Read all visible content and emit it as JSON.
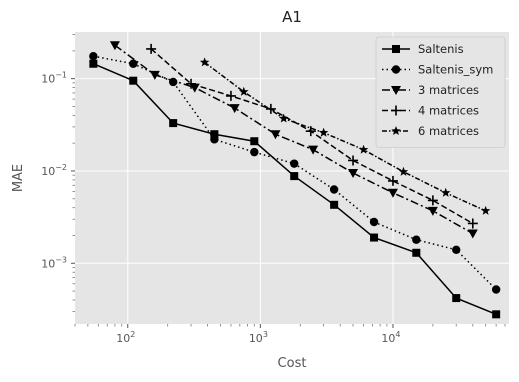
{
  "chart_data": {
    "type": "line",
    "title": "A1",
    "xlabel": "Cost",
    "ylabel": "MAE",
    "xscale": "log",
    "yscale": "log",
    "xlim": [
      40,
      75000
    ],
    "ylim": [
      0.00022,
      0.32
    ],
    "x_ticks": [
      {
        "value": 100,
        "base": "10",
        "exp": "2"
      },
      {
        "value": 1000,
        "base": "10",
        "exp": "3"
      },
      {
        "value": 10000,
        "base": "10",
        "exp": "4"
      }
    ],
    "y_ticks": [
      {
        "value": 0.001,
        "base": "10",
        "exp": "−3"
      },
      {
        "value": 0.01,
        "base": "10",
        "exp": "−2"
      },
      {
        "value": 0.1,
        "base": "10",
        "exp": "−1"
      }
    ],
    "grid": true,
    "legend_position": "upper right",
    "colors": {
      "background": "#e5e5e5",
      "grid": "#ffffff",
      "series": "#000000",
      "text": "#555555",
      "title": "#222222"
    },
    "series": [
      {
        "name": "Saltenis",
        "marker": "square",
        "linestyle": "solid",
        "x": [
          55,
          110,
          220,
          450,
          900,
          1800,
          3600,
          7200,
          15000,
          30000,
          60000
        ],
        "y": [
          0.145,
          0.095,
          0.033,
          0.025,
          0.021,
          0.0088,
          0.0043,
          0.0019,
          0.0013,
          0.00042,
          0.00028
        ]
      },
      {
        "name": "Saltenis_sym",
        "marker": "circle",
        "linestyle": "dotted",
        "x": [
          55,
          110,
          220,
          450,
          900,
          1800,
          3600,
          7200,
          15000,
          30000,
          60000
        ],
        "y": [
          0.175,
          0.145,
          0.092,
          0.022,
          0.016,
          0.012,
          0.0063,
          0.0028,
          0.0018,
          0.0014,
          0.00052
        ]
      },
      {
        "name": "3 matrices",
        "marker": "triangle-down",
        "linestyle": "dashdot",
        "x": [
          80,
          160,
          320,
          640,
          1300,
          2500,
          5000,
          10000,
          20000,
          40000
        ],
        "y": [
          0.23,
          0.11,
          0.08,
          0.048,
          0.025,
          0.017,
          0.0095,
          0.0058,
          0.0037,
          0.0021
        ]
      },
      {
        "name": "4 matrices",
        "marker": "plus",
        "linestyle": "dashed",
        "x": [
          150,
          300,
          600,
          1200,
          2400,
          5000,
          10000,
          20000,
          40000
        ],
        "y": [
          0.21,
          0.088,
          0.065,
          0.047,
          0.027,
          0.013,
          0.0078,
          0.0048,
          0.0027
        ]
      },
      {
        "name": "6 matrices",
        "marker": "star",
        "linestyle": "dashdot-dense",
        "x": [
          380,
          750,
          1500,
          3000,
          6000,
          12000,
          25000,
          50000
        ],
        "y": [
          0.15,
          0.072,
          0.037,
          0.026,
          0.017,
          0.0098,
          0.0058,
          0.0037
        ]
      }
    ]
  }
}
